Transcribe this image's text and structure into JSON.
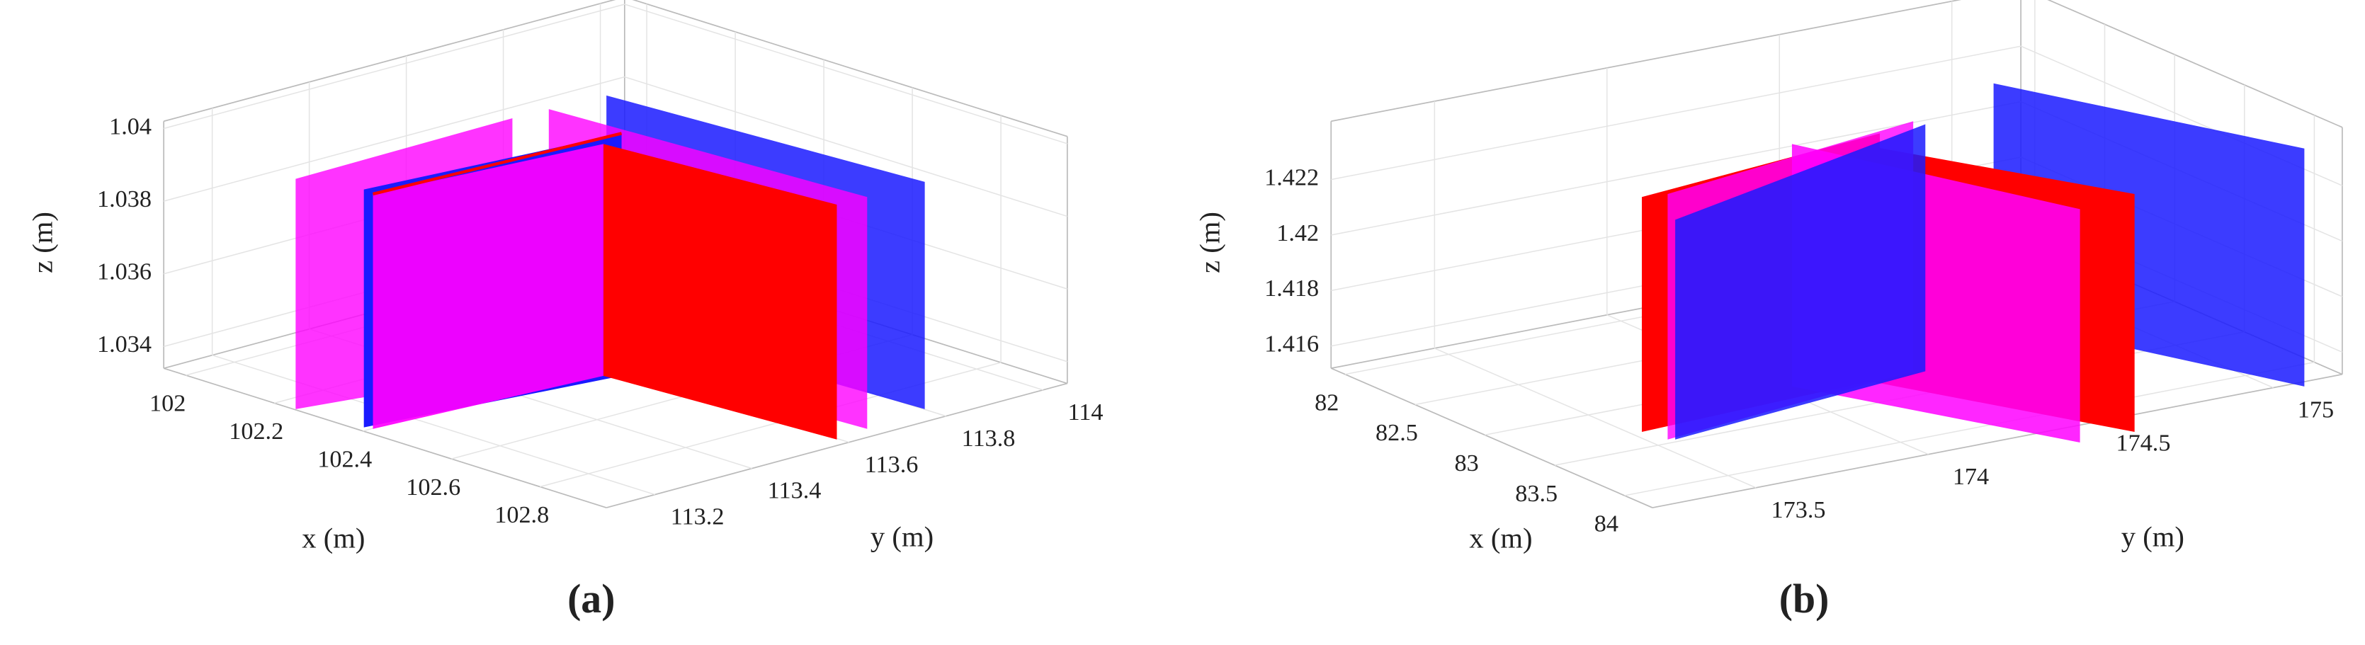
{
  "chart_data": [
    {
      "type": "plane3d",
      "label": "(a)",
      "x_label": "x (m)",
      "y_label": "y (m)",
      "z_label": "z (m)",
      "xlim": [
        101.95,
        102.95
      ],
      "xticks": [
        102,
        102.2,
        102.4,
        102.6,
        102.8
      ],
      "ylim": [
        113.1,
        114.05
      ],
      "yticks": [
        113.2,
        113.4,
        113.6,
        113.8,
        114
      ],
      "zlim": [
        1.0334,
        1.0402
      ],
      "zticks": [
        1.034,
        1.036,
        1.038,
        1.04
      ],
      "grid": true
    },
    {
      "type": "plane3d",
      "label": "(b)",
      "x_label": "x (m)",
      "y_label": "y (m)",
      "z_label": "z (m)",
      "xlim": [
        81.9,
        84.2
      ],
      "xticks": [
        82,
        82.5,
        83,
        83.5,
        84
      ],
      "ylim": [
        173.2,
        175.2
      ],
      "yticks": [
        173.5,
        174,
        174.5,
        175
      ],
      "zlim": [
        1.4152,
        1.4241
      ],
      "zticks": [
        1.416,
        1.418,
        1.42,
        1.422
      ],
      "grid": true
    }
  ]
}
